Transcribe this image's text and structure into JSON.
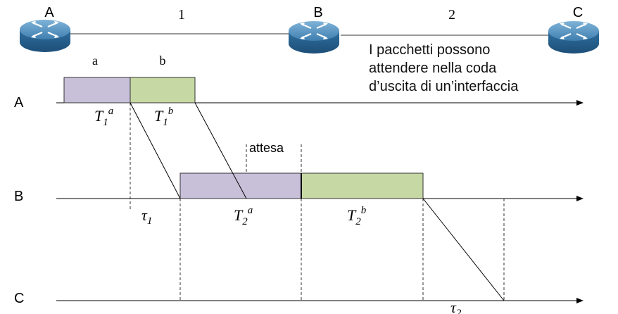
{
  "nodes": [
    {
      "id": "A",
      "label": "A"
    },
    {
      "id": "B",
      "label": "B"
    },
    {
      "id": "C",
      "label": "C"
    }
  ],
  "links": [
    {
      "label": "1"
    },
    {
      "label": "2"
    }
  ],
  "packets": [
    {
      "label": "a",
      "color": "#c8bfd9"
    },
    {
      "label": "b",
      "color": "#c6d8a3"
    }
  ],
  "timelines": [
    {
      "label": "A"
    },
    {
      "label": "B"
    },
    {
      "label": "C"
    }
  ],
  "durations": {
    "t1a": {
      "base": "T",
      "sub": "1",
      "sup": "a"
    },
    "t1b": {
      "base": "T",
      "sub": "1",
      "sup": "b"
    },
    "t2a": {
      "base": "T",
      "sub": "2",
      "sup": "a"
    },
    "t2b": {
      "base": "T",
      "sub": "2",
      "sup": "b"
    },
    "tau1": {
      "base": "τ",
      "sub": "1"
    },
    "tau2": {
      "base": "τ",
      "sub": "2"
    }
  },
  "wait_label": "attesa",
  "note_lines": [
    "I pacchetti possono",
    "attendere nella coda",
    "d’uscita di un’interfaccia"
  ]
}
